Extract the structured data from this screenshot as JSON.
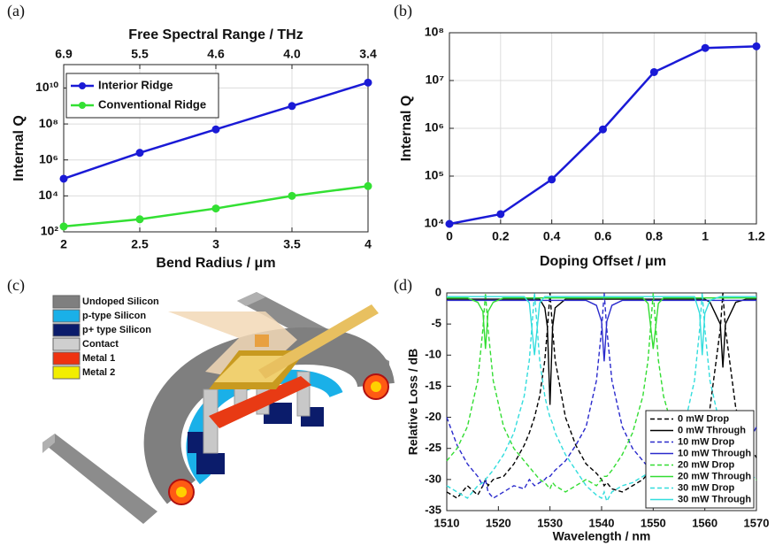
{
  "chart_data": [
    {
      "type": "line",
      "label": "(a)",
      "x2label": "Free Spectral Range / THz",
      "xlabel": "Bend Radius / μm",
      "ylabel": "Internal Q",
      "yscale": "log",
      "grid": true,
      "legend": "upper left",
      "markers": true,
      "x": [
        2,
        2.5,
        3,
        3.5,
        4
      ],
      "xlim": [
        2,
        4
      ],
      "xticks": [
        2,
        2.5,
        3,
        3.5,
        4
      ],
      "x2ticks": [
        6.9,
        5.5,
        4.6,
        {
          "value": 4.0,
          "label": "4.0"
        },
        3.4
      ],
      "ylim": [
        100,
        200000000000
      ],
      "yticks": [
        {
          "value": 100,
          "label": "10²"
        },
        {
          "value": 10000,
          "label": "10⁴"
        },
        {
          "value": 1000000,
          "label": "10⁶"
        },
        {
          "value": 100000000,
          "label": "10⁸"
        },
        {
          "value": 10000000000,
          "label": "10¹⁰"
        }
      ],
      "series": [
        {
          "name": "Interior Ridge",
          "color": "#1a1ad6",
          "values": [
            90000,
            2500000,
            50000000,
            1000000000,
            20000000000
          ]
        },
        {
          "name": "Conventional Ridge",
          "color": "#33e033",
          "values": [
            200,
            500,
            2000,
            10000,
            35000
          ]
        }
      ]
    },
    {
      "type": "line",
      "label": "(b)",
      "xlabel": "Doping Offset / μm",
      "ylabel": "Internal Q",
      "yscale": "log",
      "grid": true,
      "markers": true,
      "x": [
        0,
        0.2,
        0.4,
        0.6,
        0.8,
        1,
        1.2
      ],
      "xlim": [
        0,
        1.2
      ],
      "xticks": [
        0,
        0.2,
        0.4,
        0.6,
        0.8,
        1,
        1.2
      ],
      "ylim": [
        10000,
        100000000
      ],
      "yticks": [
        {
          "value": 10000,
          "label": "10⁴"
        },
        {
          "value": 100000,
          "label": "10⁵"
        },
        {
          "value": 1000000,
          "label": "10⁶"
        },
        {
          "value": 10000000,
          "label": "10⁷"
        },
        {
          "value": 100000000,
          "label": "10⁸"
        }
      ],
      "series": [
        {
          "color": "#1a1ad6",
          "values": [
            10000,
            16000,
            85000,
            950000,
            15000000,
            48000000,
            52000000
          ]
        }
      ]
    },
    {
      "type": "line",
      "label": "(d)",
      "xlabel": "Wavelength / nm",
      "ylabel": "Relative Loss / dB",
      "grid": false,
      "legend": "lower right",
      "markers": false,
      "x": [
        1510,
        1512,
        1514,
        1516,
        1517,
        1517.5,
        1518,
        1519,
        1521,
        1523,
        1525,
        1526,
        1527,
        1528,
        1529,
        1529.5,
        1530,
        1530.5,
        1531,
        1533,
        1535,
        1537,
        1539,
        1540,
        1540.5,
        1541,
        1542,
        1544,
        1546,
        1548,
        1549,
        1550,
        1551,
        1552,
        1554,
        1556,
        1558,
        1559,
        1559.5,
        1560,
        1561,
        1563,
        1563.5,
        1564,
        1566,
        1568,
        1570
      ],
      "xlim": [
        1510,
        1570
      ],
      "xticks": [
        1510,
        1520,
        1530,
        1540,
        1550,
        1560,
        1570
      ],
      "ylim": [
        -35,
        0
      ],
      "yticks": [
        0,
        -5,
        -10,
        -15,
        -20,
        -25,
        -30,
        -35
      ],
      "series": [
        {
          "name": "0 mW Drop",
          "color": "#000000",
          "dash": true,
          "values": [
            -32,
            -33,
            -31,
            -32.5,
            -31,
            -30,
            -31,
            -30,
            -29.5,
            -27.5,
            -24.5,
            -22.5,
            -20,
            -16.6,
            -10.8,
            -5.8,
            0,
            -5.8,
            -10.8,
            -20,
            -24.5,
            -27.5,
            -29,
            -30,
            -31,
            -30.5,
            -31.5,
            -32,
            -31,
            -30,
            -29,
            -30,
            -28.5,
            -28,
            -28,
            -26.5,
            -24.5,
            -23.5,
            -22.5,
            -21.5,
            -18.5,
            -5.8,
            0,
            -5.8,
            -18.5,
            -23.5,
            -26.5
          ]
        },
        {
          "name": "0 mW Through",
          "color": "#000000",
          "dash": false,
          "values": [
            -1,
            -1,
            -1,
            -1,
            -1,
            -1,
            -1,
            -1,
            -1,
            -1,
            -1,
            -1,
            -1,
            -1,
            -2.4,
            -5.5,
            -18,
            -5.5,
            -2.4,
            -1,
            -1,
            -1,
            -1,
            -1,
            -1,
            -1,
            -1,
            -1,
            -1,
            -1,
            -1,
            -1,
            -1,
            -1,
            -1,
            -1,
            -1,
            -1,
            -1,
            -1,
            -1.5,
            -5,
            -12,
            -5,
            -1.5,
            -1,
            -1
          ]
        },
        {
          "name": "10 mW Drop",
          "color": "#2a2acc",
          "dash": true,
          "values": [
            -20,
            -24.5,
            -27.5,
            -29.5,
            -31,
            -30,
            -32,
            -33,
            -32,
            -31,
            -31.5,
            -30,
            -31,
            -30.5,
            -30,
            -29.5,
            -29.5,
            -29,
            -28.5,
            -27,
            -24.5,
            -21.5,
            -14.1,
            -5.8,
            0,
            -5.8,
            -14.1,
            -21.5,
            -25,
            -27,
            -28,
            -28.5,
            -29,
            -29.5,
            -30.5,
            -31,
            -30,
            -31.5,
            -31,
            -32,
            -31,
            -32,
            -31.5,
            -32,
            -27,
            -25,
            -21.5
          ]
        },
        {
          "name": "10 mW Through",
          "color": "#2a2acc",
          "dash": false,
          "values": [
            -1.2,
            -1.2,
            -1.2,
            -1.2,
            -1.2,
            -1.2,
            -1.2,
            -1.2,
            -1.2,
            -1.2,
            -1.2,
            -1.2,
            -1.2,
            -1.2,
            -1.2,
            -1.2,
            -1.2,
            -1.2,
            -1.2,
            -1.2,
            -1.2,
            -1.2,
            -2,
            -4.6,
            -11,
            -4.6,
            -2,
            -1.2,
            -1.2,
            -1.2,
            -1.2,
            -1.2,
            -1.2,
            -1.2,
            -1.2,
            -1.2,
            -1.2,
            -1.2,
            -1.2,
            -1.2,
            -1.2,
            -1.2,
            -1.2,
            -1.2,
            -1.2,
            -1.2,
            -1.2
          ]
        },
        {
          "name": "20 mW Drop",
          "color": "#33dd33",
          "dash": true,
          "values": [
            -27,
            -25,
            -21.5,
            -14.1,
            -5.8,
            0,
            -5.8,
            -14.1,
            -21.5,
            -25,
            -27,
            -28,
            -29,
            -30,
            -30.5,
            -31,
            -31.5,
            -30.5,
            -31,
            -32,
            -31,
            -30,
            -31,
            -30,
            -29.5,
            -29.5,
            -28.5,
            -26,
            -22.5,
            -16.6,
            -10.8,
            0,
            -10.8,
            -16.6,
            -22.5,
            -26,
            -28.5,
            -29,
            -29.5,
            -30,
            -30.5,
            -31,
            -30,
            -31,
            -30,
            -31,
            -30
          ]
        },
        {
          "name": "20 mW Through",
          "color": "#33dd33",
          "dash": false,
          "values": [
            -0.8,
            -0.8,
            -0.8,
            -1.5,
            -3,
            -9,
            -3,
            -1.5,
            -0.8,
            -0.8,
            -0.8,
            -0.8,
            -0.8,
            -0.8,
            -0.8,
            -0.8,
            -0.8,
            -0.8,
            -0.8,
            -0.8,
            -0.8,
            -0.8,
            -0.8,
            -0.8,
            -0.8,
            -0.8,
            -0.8,
            -0.8,
            -0.8,
            -0.8,
            -1.7,
            -9,
            -1.7,
            -0.8,
            -0.8,
            -0.8,
            -0.8,
            -0.8,
            -0.8,
            -0.8,
            -0.8,
            -0.8,
            -0.8,
            -0.8,
            -0.8,
            -0.8,
            -0.8
          ]
        },
        {
          "name": "30 mW Drop",
          "color": "#33dddd",
          "dash": true,
          "values": [
            -31,
            -32,
            -33,
            -31,
            -30.5,
            -30,
            -29.5,
            -28.5,
            -26,
            -22.5,
            -16.6,
            -10.8,
            0,
            -10.8,
            -16.6,
            -18.5,
            -20,
            -21,
            -22.5,
            -26,
            -28.5,
            -31,
            -32.5,
            -33,
            -32,
            -33.5,
            -32,
            -31,
            -30.5,
            -29.5,
            -29,
            -28.5,
            -27.5,
            -27,
            -25,
            -21.5,
            -14.1,
            -5.8,
            0,
            -5.8,
            -14.1,
            -21.5,
            -22.5,
            -23.5,
            -26.5,
            -28.5,
            -30
          ]
        },
        {
          "name": "30 mW Through",
          "color": "#33dddd",
          "dash": false,
          "values": [
            -0.6,
            -0.6,
            -0.6,
            -0.6,
            -0.6,
            -0.6,
            -0.6,
            -0.6,
            -0.6,
            -0.6,
            -0.6,
            -1.6,
            -10,
            -1.6,
            -0.6,
            -0.6,
            -0.6,
            -0.6,
            -0.6,
            -0.6,
            -0.6,
            -0.6,
            -0.6,
            -0.6,
            -0.6,
            -0.6,
            -0.6,
            -0.6,
            -0.6,
            -0.6,
            -0.6,
            -0.6,
            -0.6,
            -0.6,
            -0.6,
            -0.6,
            -0.6,
            -3.3,
            -10,
            -3.3,
            -1.2,
            -0.6,
            -0.6,
            -0.6,
            -0.6,
            -0.6,
            -0.6
          ]
        }
      ]
    }
  ],
  "diagram": {
    "label": "(c)",
    "legend": [
      {
        "label": "Undoped Silicon",
        "color": "#7f7f7f"
      },
      {
        "label": "p-type Silicon",
        "color": "#1ab0e8"
      },
      {
        "label": "p+ type Silicon",
        "color": "#0b1c6b"
      },
      {
        "label": "Contact",
        "color": "#cfcfcf"
      },
      {
        "label": "Metal 1",
        "color": "#ee3311"
      },
      {
        "label": "Metal 2",
        "color": "#f2ee00"
      }
    ]
  }
}
